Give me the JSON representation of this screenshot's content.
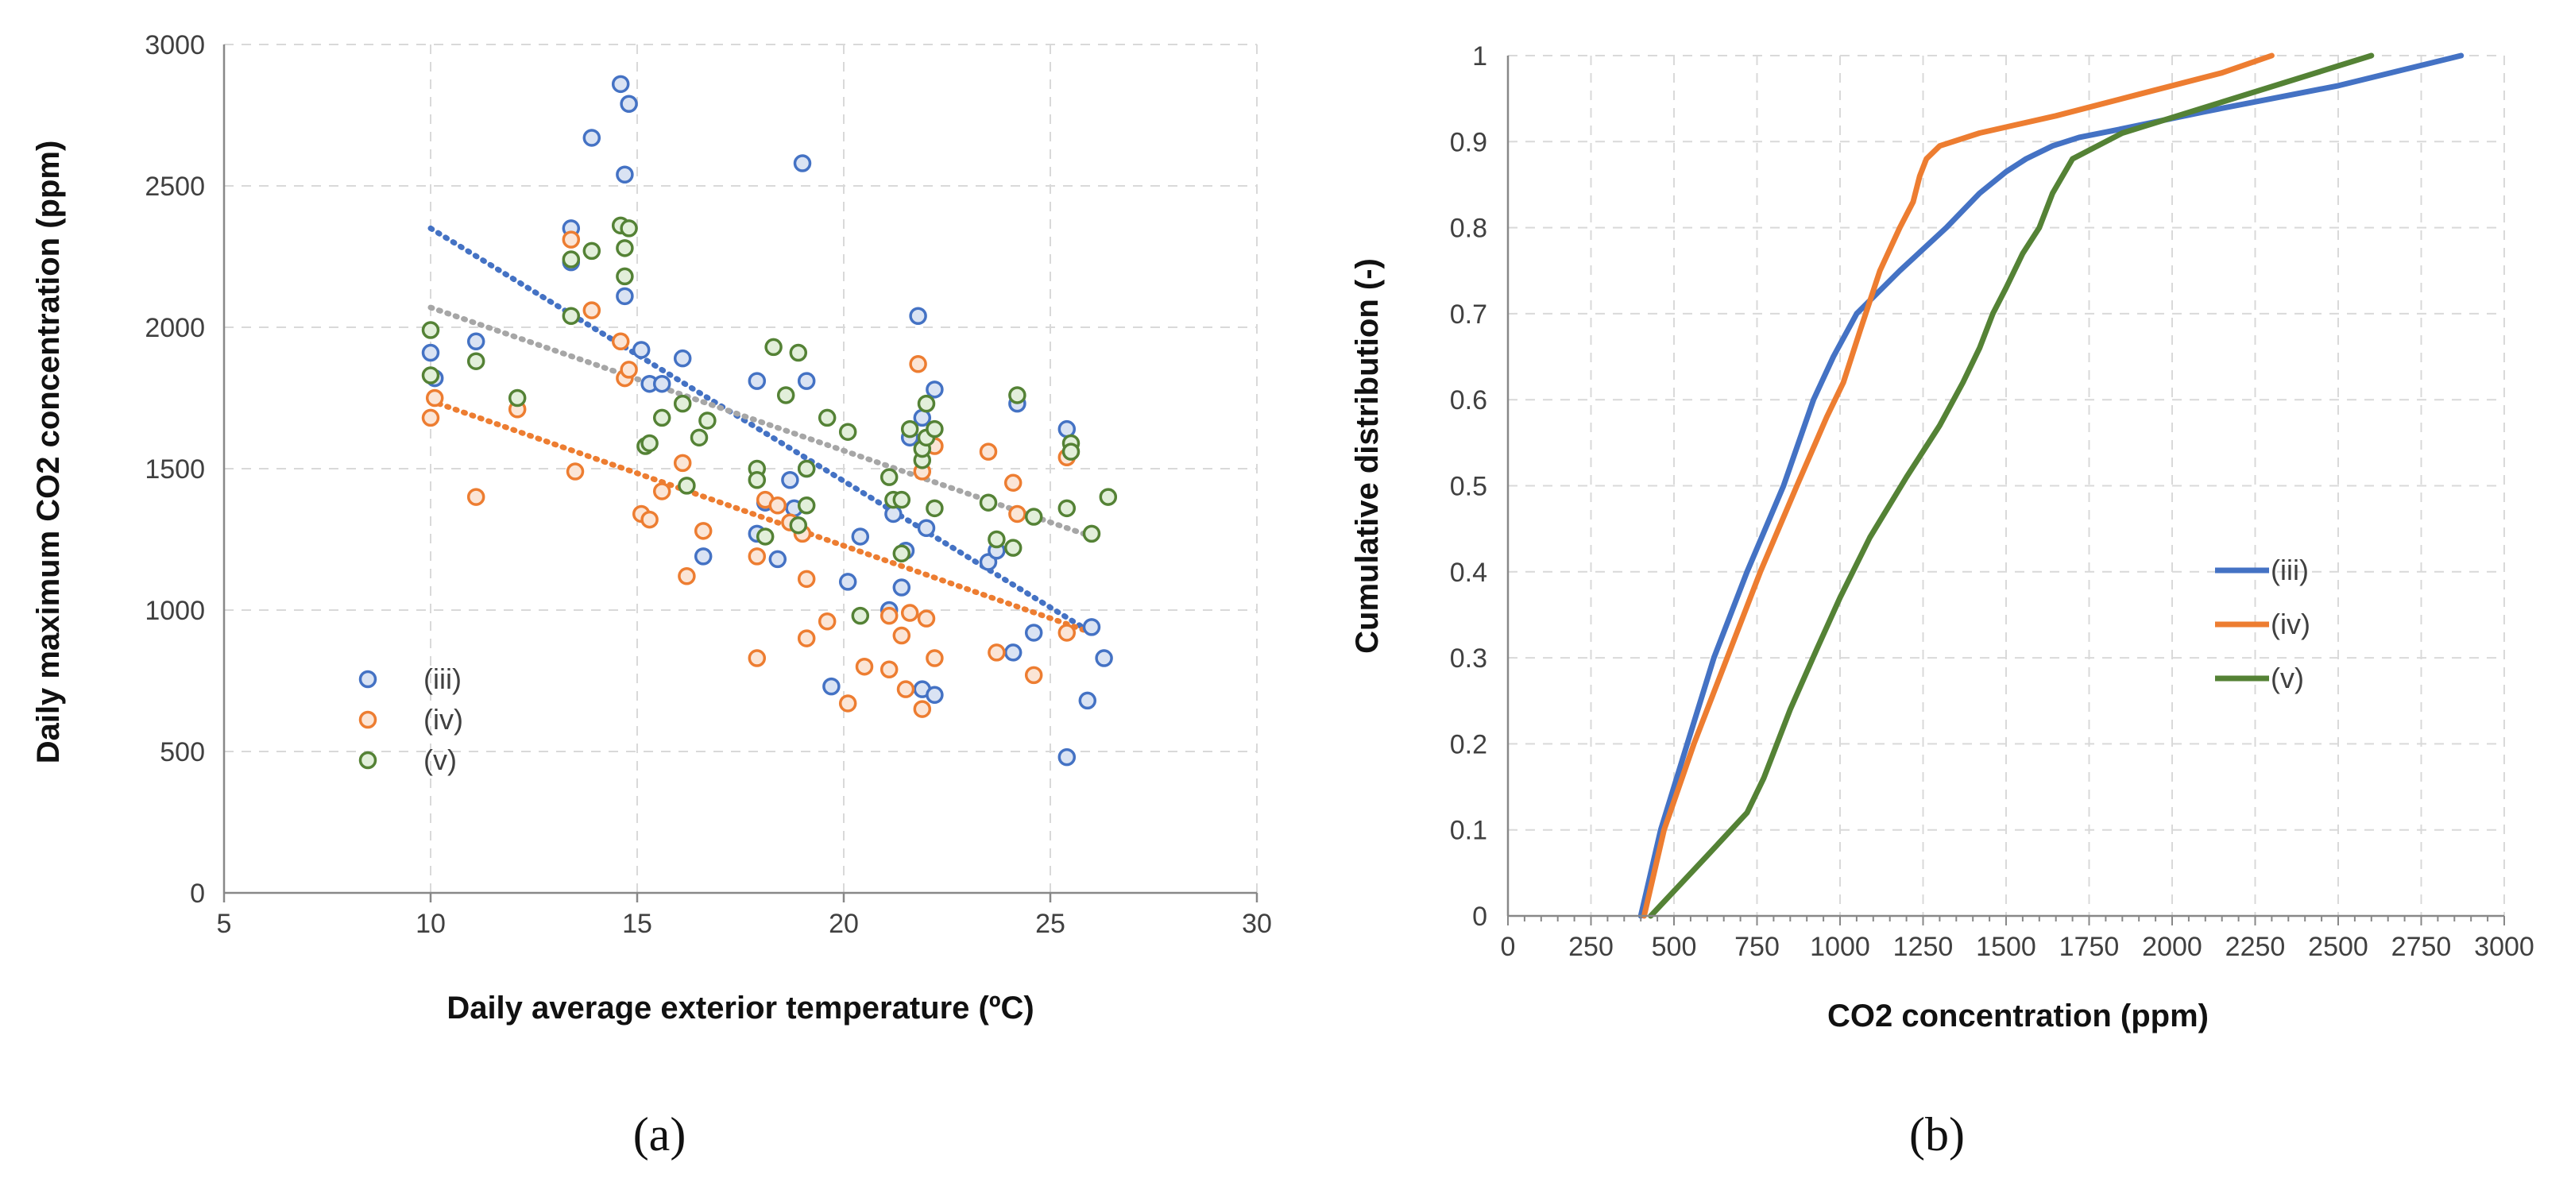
{
  "chart_data": [
    {
      "id": "a",
      "type": "scatter",
      "panel_label": "(a)",
      "xlabel": "Daily average exterior temperature (ºC)",
      "ylabel": "Daily maximum CO2 concentration  (ppm)",
      "xlim": [
        5,
        30
      ],
      "ylim": [
        0,
        3000
      ],
      "xticks": [
        "5",
        "10",
        "15",
        "20",
        "25",
        "30"
      ],
      "yticks": [
        "0",
        "500",
        "1000",
        "1500",
        "2000",
        "2500",
        "3000"
      ],
      "legend_position": "lower-left",
      "trendline_style": "dotted linear trend per series",
      "series": [
        {
          "name": "(iii)",
          "color": "#4472C4",
          "fill": "#dae3f3",
          "trend": [
            [
              10,
              2350
            ],
            [
              26,
              920
            ]
          ],
          "points": [
            [
              10,
              1910
            ],
            [
              10.1,
              1820
            ],
            [
              11.1,
              1950
            ],
            [
              13.4,
              2350
            ],
            [
              13.4,
              2230
            ],
            [
              13.9,
              2670
            ],
            [
              14.6,
              2860
            ],
            [
              14.7,
              2540
            ],
            [
              14.7,
              2110
            ],
            [
              14.8,
              2790
            ],
            [
              15.1,
              1920
            ],
            [
              15.3,
              1800
            ],
            [
              15.6,
              1800
            ],
            [
              16.1,
              1890
            ],
            [
              16.6,
              1190
            ],
            [
              18.8,
              1360
            ],
            [
              17.9,
              1810
            ],
            [
              17.9,
              1270
            ],
            [
              18.1,
              1380
            ],
            [
              18.4,
              1180
            ],
            [
              18.7,
              1460
            ],
            [
              19.0,
              2580
            ],
            [
              19.1,
              1810
            ],
            [
              19.1,
              1500
            ],
            [
              20.1,
              1100
            ],
            [
              20.4,
              1260
            ],
            [
              19.7,
              730
            ],
            [
              21.1,
              1000
            ],
            [
              21.2,
              1340
            ],
            [
              21.4,
              1080
            ],
            [
              21.5,
              1210
            ],
            [
              21.6,
              1610
            ],
            [
              21.8,
              2040
            ],
            [
              21.9,
              1680
            ],
            [
              22.0,
              1290
            ],
            [
              21.9,
              720
            ],
            [
              22.2,
              1780
            ],
            [
              22.2,
              700
            ],
            [
              23.5,
              1170
            ],
            [
              23.7,
              1210
            ],
            [
              24.1,
              850
            ],
            [
              24.2,
              1730
            ],
            [
              24.6,
              920
            ],
            [
              25.4,
              1640
            ],
            [
              25.4,
              480
            ],
            [
              25.9,
              680
            ],
            [
              26.0,
              940
            ],
            [
              26.3,
              830
            ]
          ]
        },
        {
          "name": "(iv)",
          "color": "#ED7D31",
          "fill": "#fbe5d6",
          "trend": [
            [
              10,
              1740
            ],
            [
              26,
              920
            ]
          ],
          "points": [
            [
              10,
              1680
            ],
            [
              10.1,
              1750
            ],
            [
              11.1,
              1400
            ],
            [
              12.1,
              1710
            ],
            [
              13.4,
              2310
            ],
            [
              13.5,
              1490
            ],
            [
              13.9,
              2060
            ],
            [
              14.6,
              1950
            ],
            [
              14.7,
              1820
            ],
            [
              14.8,
              1850
            ],
            [
              15.1,
              1340
            ],
            [
              15.3,
              1320
            ],
            [
              15.6,
              1420
            ],
            [
              16.1,
              1520
            ],
            [
              16.2,
              1120
            ],
            [
              16.6,
              1280
            ],
            [
              17.9,
              1190
            ],
            [
              17.9,
              830
            ],
            [
              18.1,
              1390
            ],
            [
              18.4,
              1370
            ],
            [
              18.7,
              1310
            ],
            [
              19.0,
              1270
            ],
            [
              19.1,
              1110
            ],
            [
              19.1,
              900
            ],
            [
              19.6,
              960
            ],
            [
              20.1,
              670
            ],
            [
              20.5,
              800
            ],
            [
              21.1,
              980
            ],
            [
              21.1,
              790
            ],
            [
              21.4,
              910
            ],
            [
              21.5,
              720
            ],
            [
              21.6,
              990
            ],
            [
              21.8,
              1870
            ],
            [
              21.9,
              1490
            ],
            [
              21.9,
              650
            ],
            [
              22.0,
              970
            ],
            [
              22.2,
              1580
            ],
            [
              22.2,
              830
            ],
            [
              23.5,
              1560
            ],
            [
              23.7,
              850
            ],
            [
              24.1,
              1450
            ],
            [
              24.2,
              1340
            ],
            [
              24.6,
              770
            ],
            [
              25.4,
              1540
            ],
            [
              25.4,
              920
            ]
          ]
        },
        {
          "name": "(v)",
          "color": "#548235",
          "fill": "#e2efda",
          "trend": [
            [
              10,
              2070
            ],
            [
              26,
              1260
            ]
          ],
          "points": [
            [
              10,
              1990
            ],
            [
              10,
              1830
            ],
            [
              11.1,
              1880
            ],
            [
              12.1,
              1750
            ],
            [
              13.4,
              2240
            ],
            [
              13.4,
              2040
            ],
            [
              13.9,
              2270
            ],
            [
              14.6,
              2360
            ],
            [
              14.7,
              2280
            ],
            [
              14.8,
              2350
            ],
            [
              14.7,
              2180
            ],
            [
              15.2,
              1580
            ],
            [
              15.3,
              1590
            ],
            [
              15.6,
              1680
            ],
            [
              16.1,
              1730
            ],
            [
              16.2,
              1440
            ],
            [
              16.5,
              1610
            ],
            [
              16.7,
              1670
            ],
            [
              17.9,
              1500
            ],
            [
              17.9,
              1460
            ],
            [
              18.1,
              1260
            ],
            [
              18.3,
              1930
            ],
            [
              18.6,
              1760
            ],
            [
              18.9,
              1910
            ],
            [
              18.9,
              1300
            ],
            [
              19.1,
              1500
            ],
            [
              19.1,
              1370
            ],
            [
              19.6,
              1680
            ],
            [
              20.1,
              1630
            ],
            [
              20.4,
              980
            ],
            [
              21.1,
              1470
            ],
            [
              21.2,
              1390
            ],
            [
              21.4,
              1390
            ],
            [
              21.4,
              1200
            ],
            [
              21.6,
              1640
            ],
            [
              21.9,
              1530
            ],
            [
              21.9,
              1570
            ],
            [
              22.0,
              1610
            ],
            [
              22.0,
              1730
            ],
            [
              22.2,
              1640
            ],
            [
              22.2,
              1360
            ],
            [
              23.5,
              1380
            ],
            [
              23.7,
              1250
            ],
            [
              24.1,
              1220
            ],
            [
              24.2,
              1760
            ],
            [
              24.6,
              1330
            ],
            [
              25.4,
              1360
            ],
            [
              25.5,
              1590
            ],
            [
              25.5,
              1560
            ],
            [
              26.0,
              1270
            ],
            [
              26.4,
              1400
            ]
          ]
        }
      ]
    },
    {
      "id": "b",
      "type": "line",
      "panel_label": "(b)",
      "xlabel": "CO2 concentration (ppm)",
      "ylabel": "Cumulative distribution (-)",
      "xlim": [
        0,
        3000
      ],
      "ylim": [
        0,
        1
      ],
      "xticks": [
        "0",
        "250",
        "500",
        "750",
        "1000",
        "1250",
        "1500",
        "1750",
        "2000",
        "2250",
        "2500",
        "2750",
        "3000"
      ],
      "yticks": [
        "0",
        "0.1",
        "0.2",
        "0.3",
        "0.4",
        "0.5",
        "0.6",
        "0.7",
        "0.8",
        "0.9",
        "1"
      ],
      "legend_position": "right",
      "series": [
        {
          "name": "(iii)",
          "color": "#4472C4",
          "x": [
            400,
            460,
            540,
            620,
            720,
            830,
            920,
            980,
            1050,
            1180,
            1320,
            1420,
            1500,
            1560,
            1640,
            1720,
            1850,
            2100,
            2500,
            2870
          ],
          "y": [
            0,
            0.1,
            0.2,
            0.3,
            0.4,
            0.5,
            0.6,
            0.65,
            0.7,
            0.75,
            0.8,
            0.84,
            0.865,
            0.88,
            0.895,
            0.905,
            0.915,
            0.935,
            0.965,
            1.0
          ]
        },
        {
          "name": "(iv)",
          "color": "#ED7D31",
          "x": [
            410,
            470,
            560,
            660,
            760,
            870,
            960,
            1010,
            1060,
            1120,
            1180,
            1220,
            1240,
            1260,
            1300,
            1420,
            1650,
            1900,
            2150,
            2300
          ],
          "y": [
            0,
            0.1,
            0.2,
            0.3,
            0.4,
            0.5,
            0.58,
            0.62,
            0.68,
            0.75,
            0.8,
            0.83,
            0.86,
            0.88,
            0.895,
            0.91,
            0.93,
            0.955,
            0.98,
            1.0
          ]
        },
        {
          "name": "(v)",
          "color": "#548235",
          "x": [
            430,
            600,
            720,
            770,
            850,
            930,
            1000,
            1090,
            1200,
            1300,
            1370,
            1420,
            1460,
            1500,
            1550,
            1600,
            1640,
            1700,
            1850,
            2100,
            2350,
            2600
          ],
          "y": [
            0,
            0.07,
            0.12,
            0.16,
            0.24,
            0.31,
            0.37,
            0.44,
            0.51,
            0.57,
            0.62,
            0.66,
            0.7,
            0.73,
            0.77,
            0.8,
            0.84,
            0.88,
            0.91,
            0.94,
            0.97,
            1.0
          ]
        }
      ]
    }
  ]
}
